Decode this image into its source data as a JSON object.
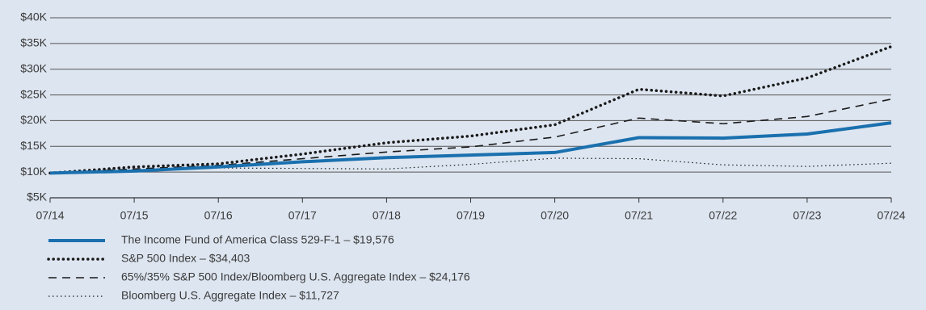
{
  "chart_data": {
    "type": "line",
    "categories": [
      "07/14",
      "07/15",
      "07/16",
      "07/17",
      "07/18",
      "07/19",
      "07/20",
      "07/21",
      "07/22",
      "07/23",
      "07/24"
    ],
    "ylim": [
      5000,
      40000
    ],
    "yticks": [
      {
        "value": 5000,
        "label": "$5K"
      },
      {
        "value": 10000,
        "label": "$10K"
      },
      {
        "value": 15000,
        "label": "$15K"
      },
      {
        "value": 20000,
        "label": "$20K"
      },
      {
        "value": 25000,
        "label": "$25K"
      },
      {
        "value": 30000,
        "label": "$30K"
      },
      {
        "value": 35000,
        "label": "$35K"
      },
      {
        "value": 40000,
        "label": "$40K"
      }
    ],
    "grid": true,
    "series": [
      {
        "name": "The Income Fund of America Class 529-F-1 – $19,576",
        "color": "#1a70ae",
        "style": "solid",
        "values": [
          9800,
          10200,
          11000,
          12000,
          12800,
          13300,
          13800,
          16700,
          16600,
          17400,
          19576
        ]
      },
      {
        "name": "S&P 500 Index – $34,403",
        "color": "#1a1a1a",
        "style": "dotted",
        "values": [
          9800,
          11000,
          11600,
          13500,
          15700,
          17000,
          19200,
          26100,
          24800,
          28300,
          34403
        ]
      },
      {
        "name": "65%/35% S&P 500 Index/Bloomberg U.S. Aggregate Index – $24,176",
        "color": "#1a1a1a",
        "style": "dashed",
        "values": [
          9800,
          10600,
          11300,
          12600,
          13900,
          14900,
          16800,
          20500,
          19400,
          20800,
          24176
        ]
      },
      {
        "name": "Bloomberg U.S. Aggregate Index – $11,727",
        "color": "#1a1a1a",
        "style": "fine-dotted",
        "values": [
          9800,
          10200,
          10800,
          10700,
          10600,
          11500,
          12700,
          12600,
          11400,
          11100,
          11727
        ]
      }
    ]
  }
}
